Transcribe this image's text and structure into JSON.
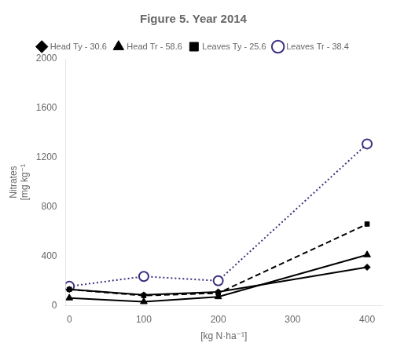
{
  "chart_data": {
    "type": "line",
    "title": "Figure 5. Year 2014",
    "xlabel": "[kg N·ha⁻¹]",
    "ylabel": "Nitrates\n[mg kg⁻¹",
    "x": [
      0,
      100,
      200,
      400
    ],
    "series": [
      {
        "name": "Head Ty - 30.6",
        "color": "#000000",
        "marker": "diamond",
        "line_style": "solid",
        "values": [
          130,
          85,
          110,
          310
        ]
      },
      {
        "name": "Head Tr - 58.6",
        "color": "#000000",
        "marker": "triangle",
        "line_style": "solid",
        "values": [
          60,
          30,
          70,
          410
        ]
      },
      {
        "name": "Leaves Ty - 25.6",
        "color": "#000000",
        "marker": "square",
        "line_style": "dashed",
        "values": [
          130,
          80,
          100,
          660
        ]
      },
      {
        "name": "Leaves Tr - 38.4",
        "color": "#3a3080",
        "marker": "circle",
        "line_style": "dotted",
        "values": [
          155,
          235,
          200,
          1310
        ]
      }
    ],
    "xlim": [
      -5,
      420
    ],
    "xticks": [
      0,
      100,
      200,
      300,
      400
    ],
    "ylim": [
      0,
      2000
    ],
    "yticks": [
      0,
      400,
      800,
      1200,
      1600,
      2000
    ],
    "grid": false,
    "legend": "top"
  }
}
